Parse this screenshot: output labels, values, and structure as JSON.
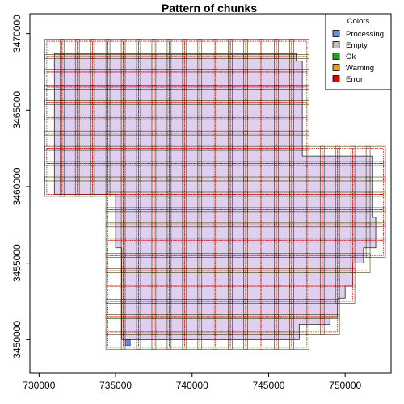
{
  "chart_data": {
    "type": "heatmap",
    "title": "Pattern of chunks",
    "xlabel": "",
    "ylabel": "",
    "xlim": [
      729400,
      753000
    ],
    "ylim": [
      3447800,
      3471300
    ],
    "xticks": [
      730000,
      735000,
      740000,
      745000,
      750000
    ],
    "yticks": [
      3450000,
      3455000,
      3460000,
      3465000,
      3470000
    ],
    "xtick_labels": [
      "730000",
      "735000",
      "740000",
      "745000",
      "750000"
    ],
    "ytick_labels": [
      "3450000",
      "3455000",
      "3460000",
      "3465000",
      "3470000"
    ],
    "legend": {
      "title": "Colors",
      "placement": "top-right",
      "items": [
        {
          "label": "Processing",
          "color": "#6b8fd6"
        },
        {
          "label": "Empty",
          "color": "#bebebe"
        },
        {
          "label": "Ok",
          "color": "#1aa31a"
        },
        {
          "label": "Warning",
          "color": "#ff9900"
        },
        {
          "label": "Error",
          "color": "#e00000"
        }
      ]
    },
    "survey_fill": "#e0d0f0",
    "grid": {
      "cell_size": 1000,
      "x_start": 730500,
      "y_start": 3449500
    },
    "footprint": [
      [
        731000,
        3468700
      ],
      [
        746800,
        3468700
      ],
      [
        746800,
        3468200
      ],
      [
        747200,
        3468200
      ],
      [
        747200,
        3462000
      ],
      [
        751800,
        3462000
      ],
      [
        751800,
        3458000
      ],
      [
        752000,
        3458000
      ],
      [
        752000,
        3456000
      ],
      [
        751200,
        3456000
      ],
      [
        751200,
        3455000
      ],
      [
        750500,
        3455000
      ],
      [
        750500,
        3453500
      ],
      [
        750000,
        3453500
      ],
      [
        750000,
        3452700
      ],
      [
        749500,
        3452700
      ],
      [
        749500,
        3451500
      ],
      [
        749000,
        3451500
      ],
      [
        749000,
        3451000
      ],
      [
        747000,
        3451000
      ],
      [
        747000,
        3450000
      ],
      [
        735400,
        3450000
      ],
      [
        735400,
        3456000
      ],
      [
        735000,
        3456000
      ],
      [
        735000,
        3459500
      ],
      [
        731000,
        3459500
      ]
    ],
    "processing_cells": [
      [
        735800,
        3449800
      ]
    ]
  }
}
